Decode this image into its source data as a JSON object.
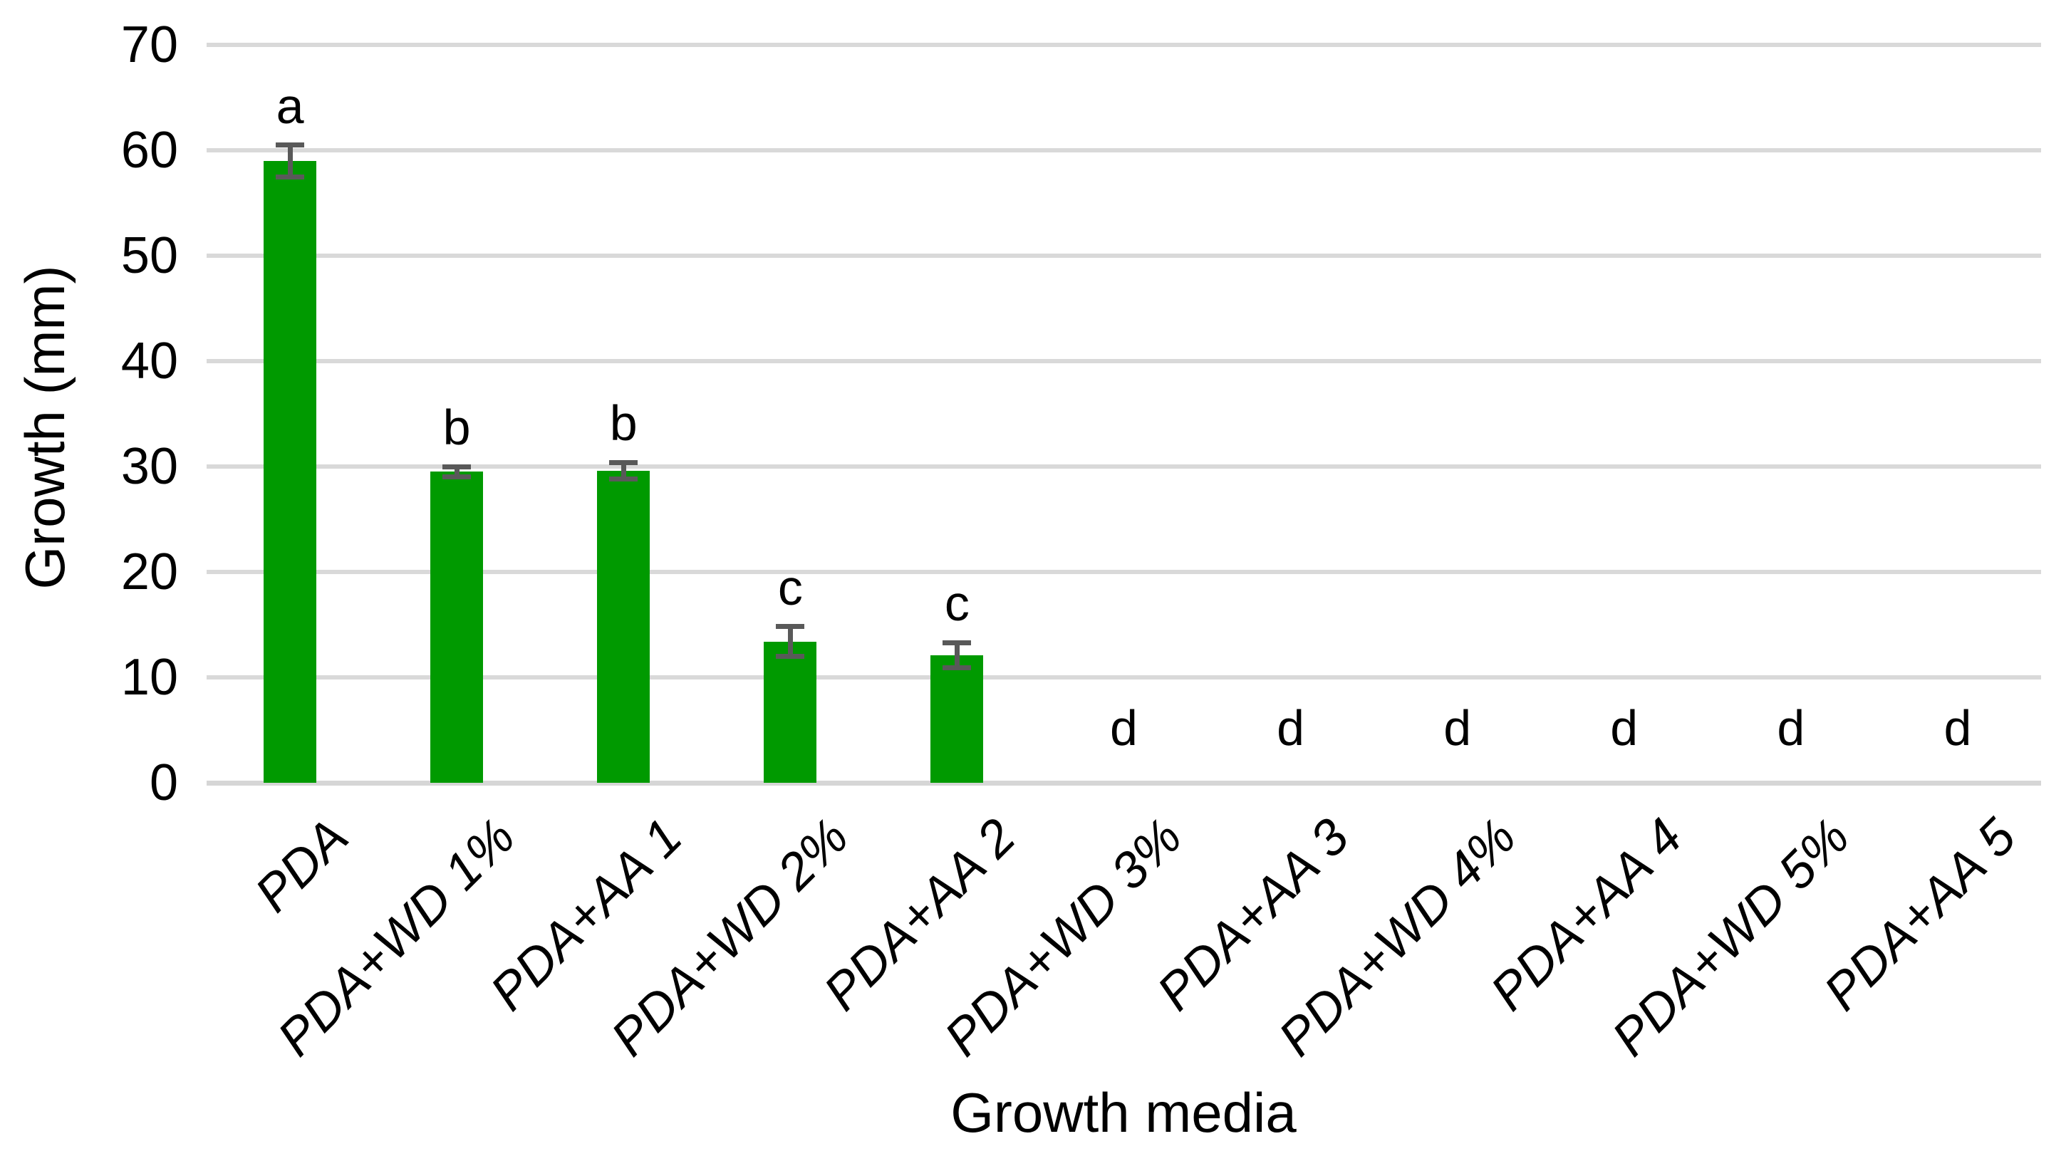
{
  "chart_data": {
    "type": "bar",
    "title": "",
    "xlabel": "Growth media",
    "ylabel": "Growth (mm)",
    "categories": [
      "PDA",
      "PDA+WD 1%",
      "PDA+AA 1",
      "PDA+WD 2%",
      "PDA+AA 2",
      "PDA+WD 3%",
      "PDA+AA 3",
      "PDA+WD 4%",
      "PDA+AA 4",
      "PDA+WD 5%",
      "PDA+AA 5"
    ],
    "values": [
      59.0,
      29.5,
      29.6,
      13.4,
      12.1,
      0,
      0,
      0,
      0,
      0,
      0
    ],
    "error_bars": [
      1.5,
      0.5,
      0.8,
      1.4,
      1.2,
      null,
      null,
      null,
      null,
      null,
      null
    ],
    "significance_letters": [
      "a",
      "b",
      "b",
      "c",
      "c",
      "d",
      "d",
      "d",
      "d",
      "d",
      "d"
    ],
    "yticks": [
      0,
      10,
      20,
      30,
      40,
      50,
      60,
      70
    ],
    "ylim": [
      0,
      70
    ],
    "grid": true,
    "legend_position": "none",
    "bar_color": "#009a00",
    "error_bar_color": "#595959",
    "gridline_color": "#d9d9d9",
    "text_color": "#000000",
    "background_color": "#ffffff"
  }
}
